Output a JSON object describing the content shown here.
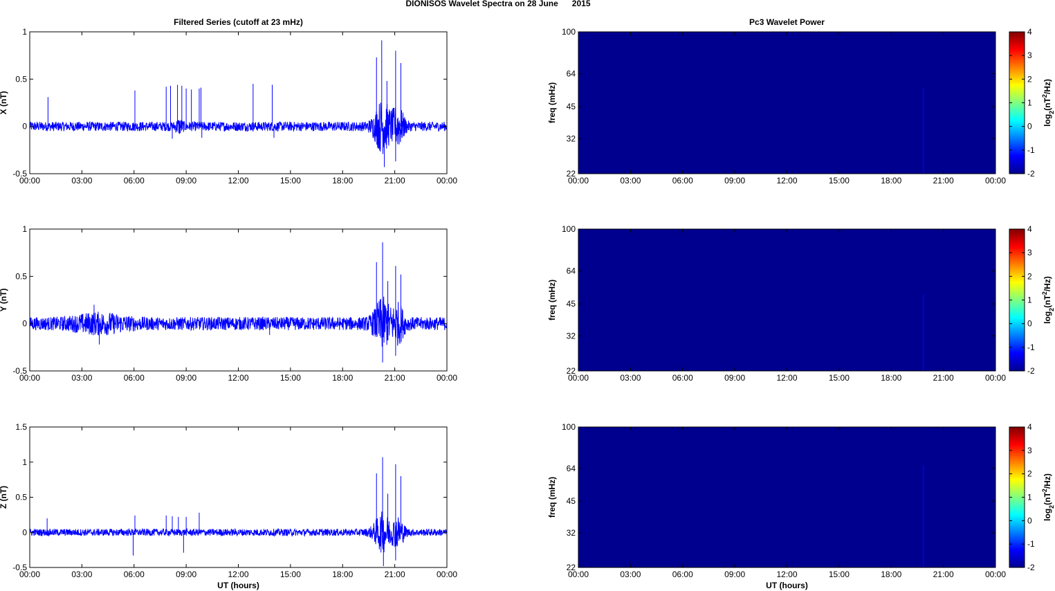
{
  "figure": {
    "title": "DIONISOS Wavelet Spectra on 28 June      2015"
  },
  "colors": {
    "series_line": "#0000ff",
    "spectrogram_background": "#00008f",
    "axes": "#000000",
    "colormap": [
      "#00008f",
      "#0000ff",
      "#0080ff",
      "#00ffff",
      "#80ff80",
      "#ffff00",
      "#ff8000",
      "#ff0000",
      "#800000"
    ]
  },
  "chart_data": [
    {
      "type": "line",
      "title": "Filtered Series (cutoff at 23 mHz)",
      "ylabel": "X (nT)",
      "xlabel": "",
      "ylim": [
        -0.5,
        1
      ],
      "yticks": [
        "1",
        "0.5",
        "0",
        "-0.5"
      ],
      "xticks": [
        "00:00",
        "03:00",
        "06:00",
        "09:00",
        "12:00",
        "15:00",
        "18:00",
        "21:00",
        "00:00"
      ],
      "xlim_hours": [
        0,
        24
      ],
      "baseline_noise_amplitude": 0.05,
      "series": [
        {
          "spikes": [
            {
              "x": 1.05,
              "y": 0.31
            },
            {
              "x": 6.05,
              "y": 0.38
            },
            {
              "x": 7.85,
              "y": 0.42
            },
            {
              "x": 8.1,
              "y": 0.43
            },
            {
              "x": 8.5,
              "y": 0.44
            },
            {
              "x": 8.75,
              "y": 0.43
            },
            {
              "x": 9.0,
              "y": 0.4
            },
            {
              "x": 9.3,
              "y": 0.39
            },
            {
              "x": 9.75,
              "y": 0.4
            },
            {
              "x": 9.85,
              "y": 0.41
            },
            {
              "x": 12.85,
              "y": 0.45
            },
            {
              "x": 13.95,
              "y": 0.44
            },
            {
              "x": 19.95,
              "y": 0.73
            },
            {
              "x": 20.25,
              "y": 0.91
            },
            {
              "x": 20.55,
              "y": 0.48
            },
            {
              "x": 21.05,
              "y": 0.8
            },
            {
              "x": 21.35,
              "y": 0.67
            },
            {
              "x": 8.2,
              "y": -0.13
            },
            {
              "x": 20.4,
              "y": -0.43
            },
            {
              "x": 21.05,
              "y": -0.37
            },
            {
              "x": 9.9,
              "y": -0.12
            },
            {
              "x": 14.05,
              "y": -0.12
            }
          ],
          "bursts": [
            {
              "center": 20.3,
              "width": 0.5,
              "amp": 0.25
            },
            {
              "center": 21.2,
              "width": 0.35,
              "amp": 0.18
            },
            {
              "center": 8.6,
              "width": 0.2,
              "amp": 0.05
            }
          ]
        }
      ]
    },
    {
      "type": "line",
      "title": "",
      "ylabel": "Y (nT)",
      "xlabel": "",
      "ylim": [
        -0.5,
        1
      ],
      "yticks": [
        "1",
        "0.5",
        "0",
        "-0.5"
      ],
      "xticks": [
        "00:00",
        "03:00",
        "06:00",
        "09:00",
        "12:00",
        "15:00",
        "18:00",
        "21:00",
        "00:00"
      ],
      "xlim_hours": [
        0,
        24
      ],
      "baseline_noise_amplitude": 0.07,
      "series": [
        {
          "spikes": [
            {
              "x": 3.7,
              "y": 0.2
            },
            {
              "x": 19.95,
              "y": 0.65
            },
            {
              "x": 20.3,
              "y": 0.86
            },
            {
              "x": 20.6,
              "y": 0.45
            },
            {
              "x": 21.05,
              "y": 0.61
            },
            {
              "x": 21.35,
              "y": 0.52
            },
            {
              "x": 20.3,
              "y": -0.41
            },
            {
              "x": 21.05,
              "y": -0.34
            },
            {
              "x": 4.0,
              "y": -0.22
            },
            {
              "x": 13.8,
              "y": -0.12
            }
          ],
          "bursts": [
            {
              "center": 20.3,
              "width": 0.5,
              "amp": 0.22
            },
            {
              "center": 21.2,
              "width": 0.35,
              "amp": 0.16
            },
            {
              "center": 4.0,
              "width": 1.5,
              "amp": 0.06
            }
          ]
        }
      ]
    },
    {
      "type": "line",
      "title": "",
      "ylabel": "Z (nT)",
      "xlabel": "UT (hours)",
      "ylim": [
        -0.5,
        1.5
      ],
      "yticks": [
        "1.5",
        "1",
        "0.5",
        "0",
        "-0.5"
      ],
      "xticks": [
        "00:00",
        "03:00",
        "06:00",
        "09:00",
        "12:00",
        "15:00",
        "18:00",
        "21:00",
        "00:00"
      ],
      "xlim_hours": [
        0,
        24
      ],
      "baseline_noise_amplitude": 0.05,
      "series": [
        {
          "spikes": [
            {
              "x": 1.0,
              "y": 0.2
            },
            {
              "x": 6.05,
              "y": 0.24
            },
            {
              "x": 7.85,
              "y": 0.24
            },
            {
              "x": 8.2,
              "y": 0.23
            },
            {
              "x": 8.55,
              "y": 0.22
            },
            {
              "x": 9.0,
              "y": 0.22
            },
            {
              "x": 9.75,
              "y": 0.28
            },
            {
              "x": 19.95,
              "y": 0.84
            },
            {
              "x": 20.3,
              "y": 1.07
            },
            {
              "x": 20.6,
              "y": 0.55
            },
            {
              "x": 21.05,
              "y": 0.97
            },
            {
              "x": 21.35,
              "y": 0.8
            },
            {
              "x": 5.95,
              "y": -0.33
            },
            {
              "x": 8.85,
              "y": -0.29
            },
            {
              "x": 20.35,
              "y": -0.48
            },
            {
              "x": 21.05,
              "y": -0.4
            }
          ],
          "bursts": [
            {
              "center": 20.3,
              "width": 0.5,
              "amp": 0.25
            },
            {
              "center": 21.2,
              "width": 0.35,
              "amp": 0.18
            }
          ]
        }
      ]
    },
    {
      "type": "heatmap",
      "title": "Pc3 Wavelet Power",
      "ylabel": "freq (mHz)",
      "xlabel": "",
      "yticks": [
        "100",
        "64",
        "45",
        "32",
        "22"
      ],
      "ylim_mHz": [
        22,
        100
      ],
      "yscale": "log",
      "xticks": [
        "00:00",
        "03:00",
        "06:00",
        "09:00",
        "12:00",
        "15:00",
        "18:00",
        "21:00",
        "00:00"
      ],
      "xlim_hours": [
        0,
        24
      ],
      "background_value": -2,
      "colorbar": {
        "ticks": [
          "4",
          "3",
          "2",
          "1",
          "0",
          "-1",
          "-2"
        ],
        "range": [
          -2,
          4
        ],
        "label_base": "log",
        "label_sub": "2",
        "label_mid": "(nT",
        "label_sup": "2",
        "label_tail": "/Hz)"
      },
      "features": [
        {
          "x": 19.85,
          "freq_top": 55,
          "value": -1.6
        }
      ]
    },
    {
      "type": "heatmap",
      "title": "",
      "ylabel": "freq (mHz)",
      "xlabel": "",
      "yticks": [
        "100",
        "64",
        "45",
        "32",
        "22"
      ],
      "ylim_mHz": [
        22,
        100
      ],
      "yscale": "log",
      "xticks": [
        "00:00",
        "03:00",
        "06:00",
        "09:00",
        "12:00",
        "15:00",
        "18:00",
        "21:00",
        "00:00"
      ],
      "xlim_hours": [
        0,
        24
      ],
      "background_value": -2,
      "colorbar": {
        "ticks": [
          "4",
          "3",
          "2",
          "1",
          "0",
          "-1",
          "-2"
        ],
        "range": [
          -2,
          4
        ],
        "label_base": "log",
        "label_sub": "2",
        "label_mid": "(nT",
        "label_sup": "2",
        "label_tail": "/Hz)"
      },
      "features": [
        {
          "x": 19.85,
          "freq_top": 50,
          "value": -1.6
        },
        {
          "x": 3.05,
          "freq_top": 28,
          "value": -1.7
        },
        {
          "x": 3.65,
          "freq_top": 29,
          "value": -1.7
        }
      ]
    },
    {
      "type": "heatmap",
      "title": "",
      "ylabel": "freq (mHz)",
      "xlabel": "UT (hours)",
      "yticks": [
        "100",
        "64",
        "45",
        "32",
        "22"
      ],
      "ylim_mHz": [
        22,
        100
      ],
      "yscale": "log",
      "xticks": [
        "00:00",
        "03:00",
        "06:00",
        "09:00",
        "12:00",
        "15:00",
        "18:00",
        "21:00",
        "00:00"
      ],
      "xlim_hours": [
        0,
        24
      ],
      "background_value": -2,
      "colorbar": {
        "ticks": [
          "4",
          "3",
          "2",
          "1",
          "0",
          "-1",
          "-2"
        ],
        "range": [
          -2,
          4
        ],
        "label_base": "log",
        "label_sub": "2",
        "label_mid": "(nT",
        "label_sup": "2",
        "label_tail": "/Hz)"
      },
      "features": [
        {
          "x": 19.85,
          "freq_top": 66,
          "value": -1.5
        },
        {
          "x": 19.05,
          "freq_top": 38,
          "value": -1.7
        }
      ]
    }
  ]
}
